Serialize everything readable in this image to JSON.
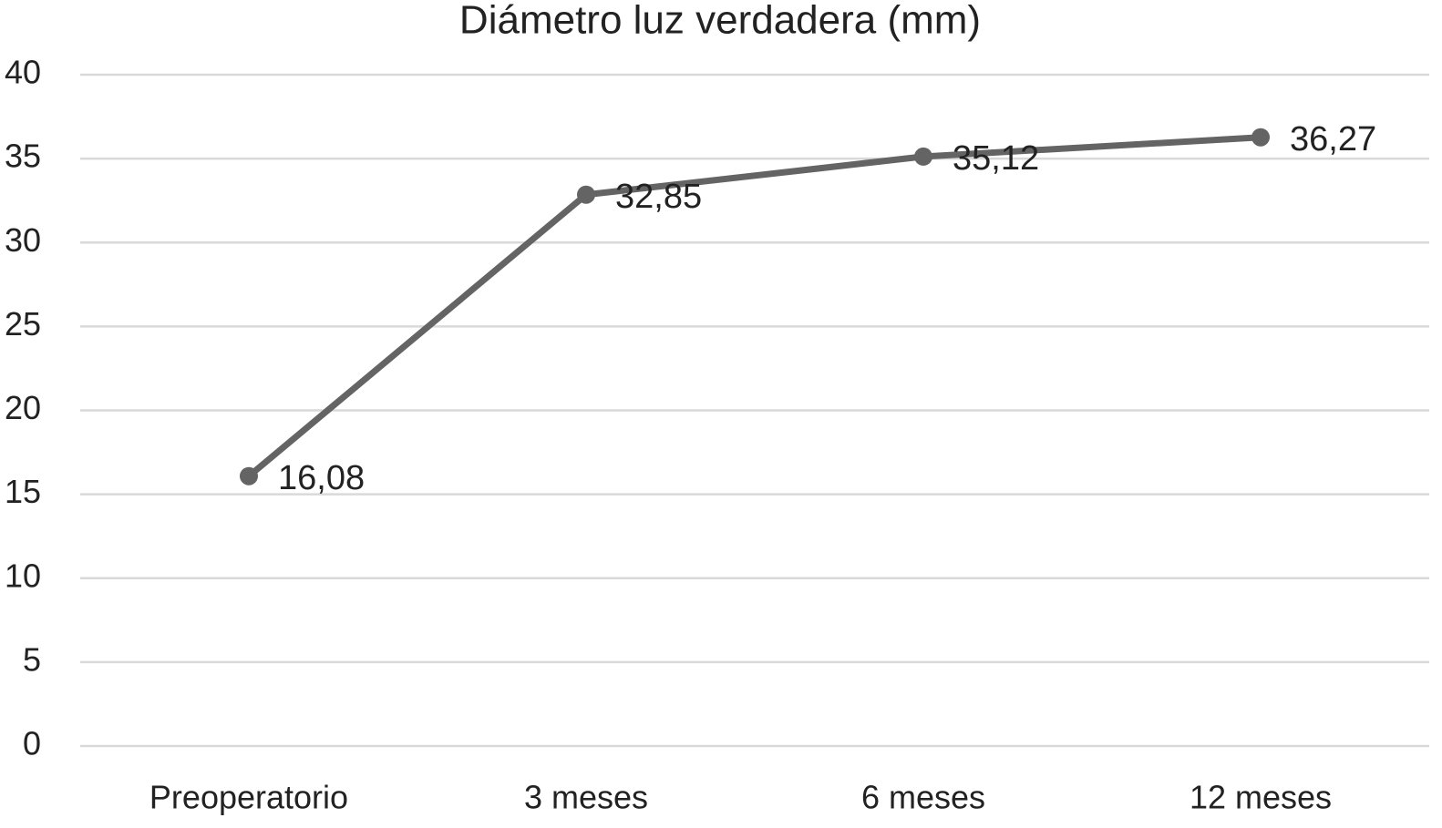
{
  "chart_data": {
    "type": "line",
    "title": "Diámetro luz verdadera (mm)",
    "categories": [
      "Preoperatorio",
      "3 meses",
      "6 meses",
      "12 meses"
    ],
    "values": [
      16.08,
      32.85,
      35.12,
      36.27
    ],
    "value_labels": [
      "16,08",
      "32,85",
      "35,12",
      "36,27"
    ],
    "color": "#646464",
    "ylim": [
      0,
      40
    ],
    "yticks": [
      0,
      5,
      10,
      15,
      20,
      25,
      30,
      35,
      40
    ],
    "grid": true
  }
}
